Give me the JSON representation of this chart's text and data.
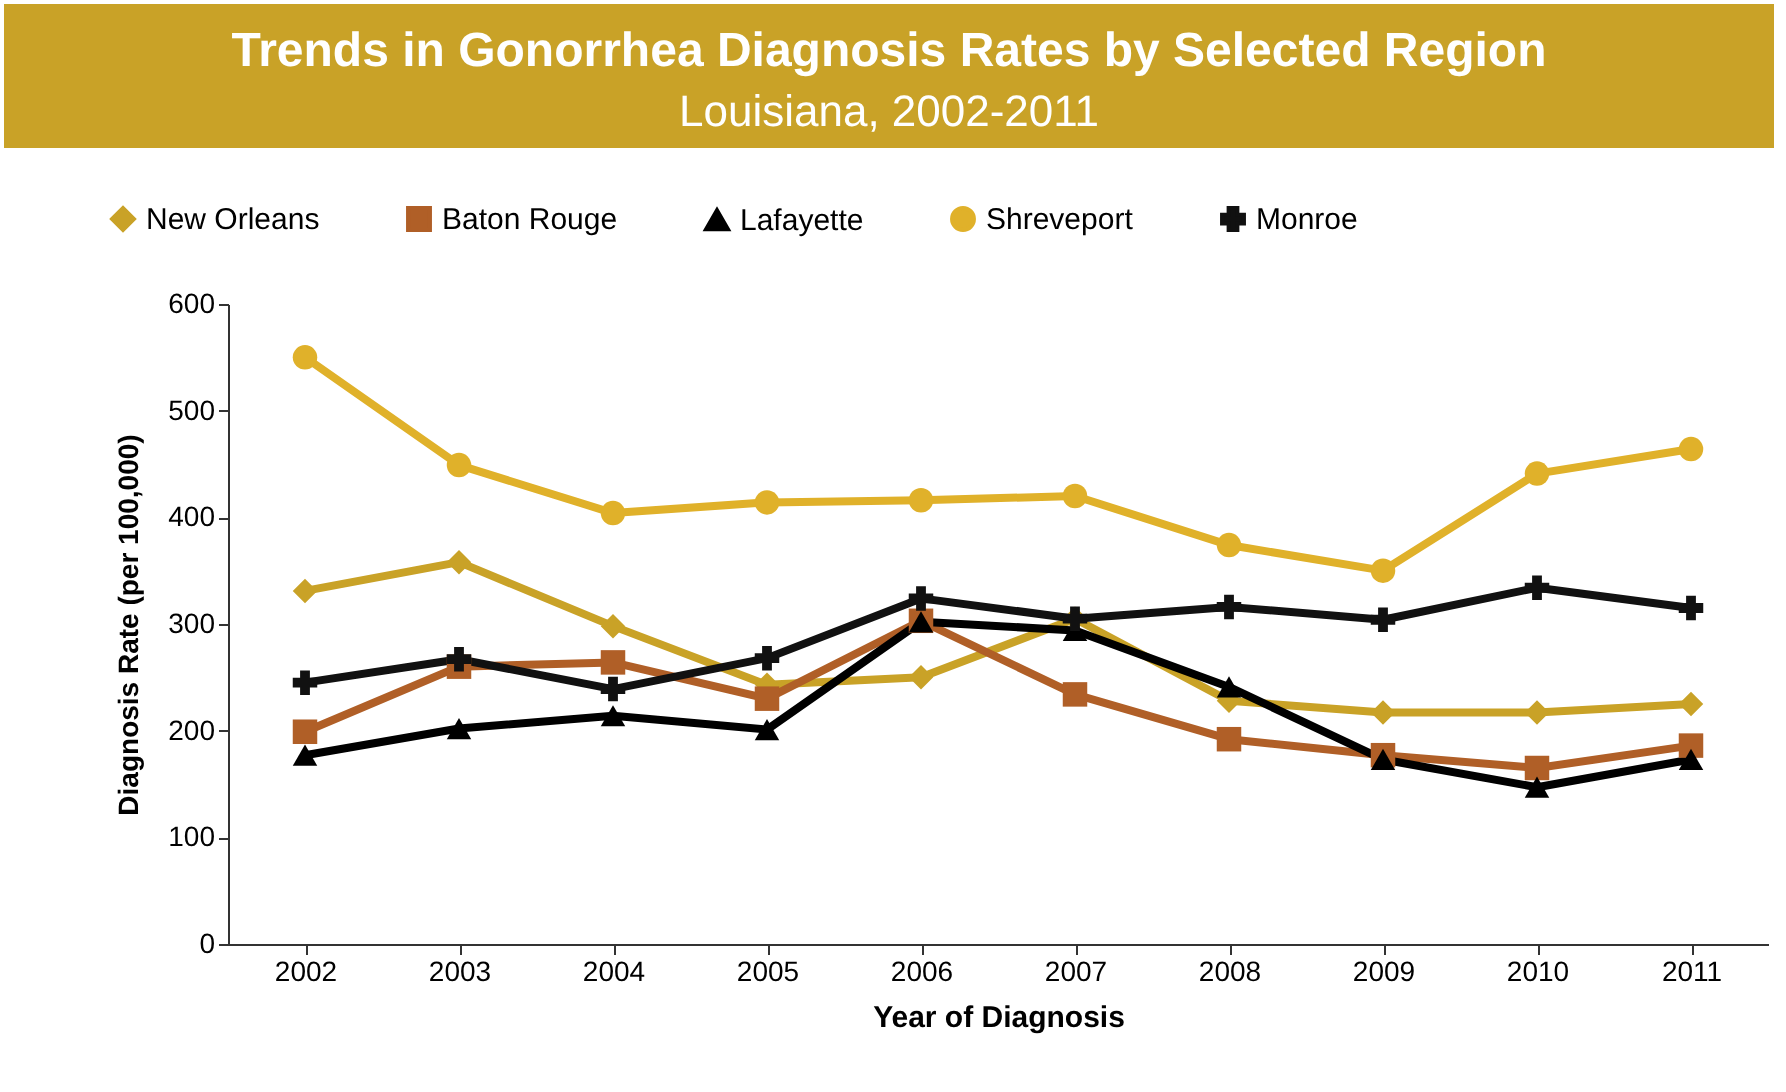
{
  "chart_data": {
    "type": "line",
    "title": "Trends in Gonorrhea Diagnosis Rates by Selected Region",
    "subtitle": "Louisiana, 2002-2011",
    "xlabel": "Year of Diagnosis",
    "ylabel": "Diagnosis Rate (per 100,000)",
    "categories": [
      "2002",
      "2003",
      "2004",
      "2005",
      "2006",
      "2007",
      "2008",
      "2009",
      "2010",
      "2011"
    ],
    "series": [
      {
        "name": "New Orleans",
        "color": "#c9a227",
        "marker": "diamond",
        "values": [
          331,
          358,
          298,
          243,
          250,
          305,
          228,
          217,
          217,
          225
        ]
      },
      {
        "name": "Baton Rouge",
        "color": "#b05f27",
        "marker": "square",
        "values": [
          199,
          260,
          264,
          230,
          303,
          234,
          192,
          177,
          165,
          186
        ]
      },
      {
        "name": "Lafayette",
        "color": "#000000",
        "marker": "triangle",
        "values": [
          177,
          202,
          214,
          201,
          302,
          294,
          241,
          173,
          147,
          173
        ]
      },
      {
        "name": "Shreveport",
        "color": "#e0b12a",
        "marker": "circle",
        "values": [
          550,
          449,
          404,
          414,
          416,
          420,
          374,
          350,
          441,
          464
        ]
      },
      {
        "name": "Monroe",
        "color": "#111111",
        "marker": "cross",
        "values": [
          245,
          267,
          239,
          268,
          324,
          305,
          316,
          304,
          334,
          315
        ]
      }
    ],
    "ylim": [
      0,
      600
    ],
    "yticks": [
      0,
      100,
      200,
      300,
      400,
      500,
      600
    ],
    "grid": false,
    "legend": "top",
    "line_style": "solid"
  }
}
